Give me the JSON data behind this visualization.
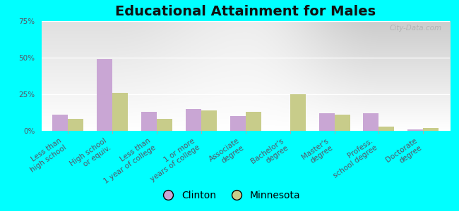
{
  "title": "Educational Attainment for Males",
  "categories": [
    "Less than\nhigh school",
    "High school\nor equiv.",
    "Less than\n1 year of college",
    "1 or more\nyears of college",
    "Associate\ndegree",
    "Bachelor's\ndegree",
    "Master's\ndegree",
    "Profess.\nschool degree",
    "Doctorate\ndegree"
  ],
  "clinton_values": [
    11,
    49,
    13,
    15,
    10,
    0,
    12,
    12,
    1
  ],
  "minnesota_values": [
    8,
    26,
    8,
    14,
    13,
    25,
    11,
    3,
    2
  ],
  "clinton_color": "#c9a6d4",
  "minnesota_color": "#c8cc8a",
  "background_color": "#00ffff",
  "plot_bg": "#eef2e0",
  "ylim": [
    0,
    75
  ],
  "yticks": [
    0,
    25,
    50,
    75
  ],
  "ytick_labels": [
    "0%",
    "25%",
    "50%",
    "75%"
  ],
  "legend_labels": [
    "Clinton",
    "Minnesota"
  ],
  "bar_width": 0.35,
  "title_fontsize": 14,
  "tick_fontsize": 7.5,
  "legend_fontsize": 10,
  "watermark": "City-Data.com"
}
